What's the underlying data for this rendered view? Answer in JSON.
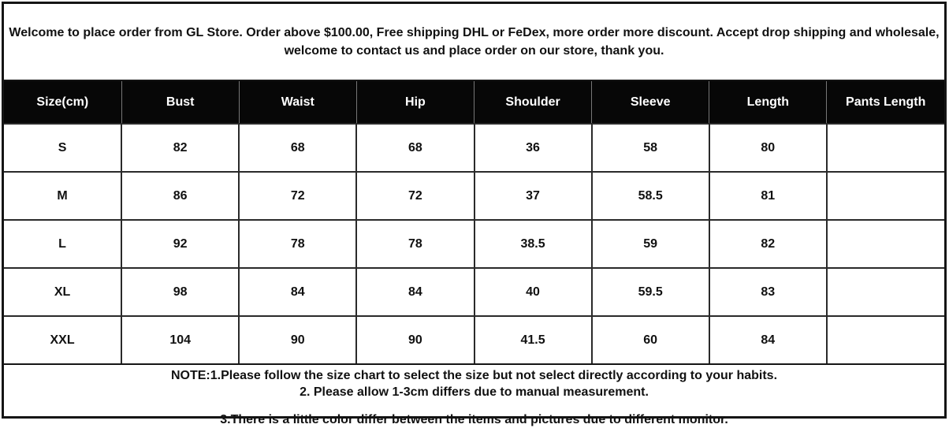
{
  "notice": {
    "text": "Welcome to place order from GL Store. Order above $100.00, Free shipping DHL or FeDex, more order more discount. Accept drop shipping and wholesale, welcome to contact us and place order on our store, thank you."
  },
  "size_chart": {
    "columns": [
      "Size(cm)",
      "Bust",
      "Waist",
      "Hip",
      "Shoulder",
      "Sleeve",
      "Length",
      "Pants Length"
    ],
    "rows": [
      [
        "S",
        "82",
        "68",
        "68",
        "36",
        "58",
        "80",
        ""
      ],
      [
        "M",
        "86",
        "72",
        "72",
        "37",
        "58.5",
        "81",
        ""
      ],
      [
        "L",
        "92",
        "78",
        "78",
        "38.5",
        "59",
        "82",
        ""
      ],
      [
        "XL",
        "98",
        "84",
        "84",
        "40",
        "59.5",
        "83",
        ""
      ],
      [
        "XXL",
        "104",
        "90",
        "90",
        "41.5",
        "60",
        "84",
        ""
      ]
    ]
  },
  "notes": {
    "note1": "NOTE:1.Please follow the size chart to select the size but not select directly according to your habits.",
    "note2": "2. Please allow 1-3cm differs due to manual measurement.",
    "note3": "3.There is a little color differ between the items and pictures due to different monitor."
  },
  "colors": {
    "background": "#ffffff",
    "outer_border": "#151515",
    "grid_border": "#2a2a2a",
    "header_bg": "#070707",
    "header_text": "#ffffff",
    "body_text": "#111111"
  }
}
